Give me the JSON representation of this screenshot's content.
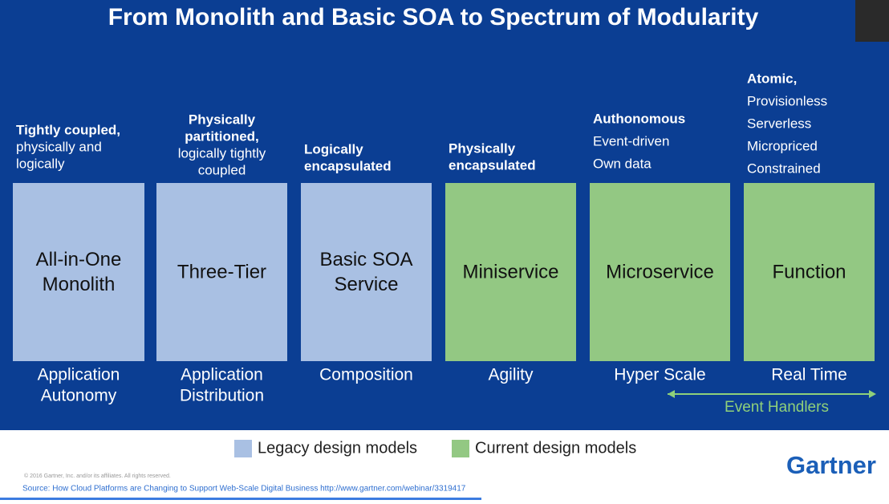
{
  "header": {
    "title": "From Monolith and Basic SOA to Spectrum of Modularity"
  },
  "columns": [
    {
      "heading": [
        "Tightly coupled,"
      ],
      "details": [
        "physically and",
        "logically"
      ],
      "box": [
        "All-in-One",
        "Monolith"
      ],
      "caption": [
        "Application",
        "Autonomy"
      ],
      "color": "#a9c0e3"
    },
    {
      "heading": [
        "Physically",
        "partitioned,"
      ],
      "details": [
        "logically tightly",
        "coupled"
      ],
      "box": [
        "Three-Tier"
      ],
      "caption": [
        "Application",
        "Distribution"
      ],
      "color": "#a9c0e3"
    },
    {
      "heading": [
        "Logically",
        "encapsulated"
      ],
      "details": [],
      "box": [
        "Basic SOA",
        "Service"
      ],
      "caption": [
        "Composition"
      ],
      "color": "#a9c0e3"
    },
    {
      "heading": [
        "Physically",
        "encapsulated"
      ],
      "details": [],
      "box": [
        "Miniservice"
      ],
      "caption": [
        "Agility"
      ],
      "color": "#93c883"
    },
    {
      "heading": [
        "Authonomous"
      ],
      "details": [
        "Event-driven",
        "Own data"
      ],
      "box": [
        "Microservice"
      ],
      "caption": [
        "Hyper Scale"
      ],
      "color": "#93c883"
    },
    {
      "heading": [
        "Atomic,"
      ],
      "details": [
        "Provisionless",
        "Serverless",
        "Micropriced",
        "Constrained"
      ],
      "box": [
        "Function"
      ],
      "caption": [
        "Real Time"
      ],
      "color": "#93c883"
    }
  ],
  "span": {
    "label": "Event Handlers",
    "color": "#8fd07a"
  },
  "legend": [
    {
      "label": "Legacy design models",
      "color": "#a9c0e3"
    },
    {
      "label": "Current design models",
      "color": "#93c883"
    }
  ],
  "footer": {
    "copyright": "© 2016 Gartner, Inc. and/or its affiliates. All rights reserved.",
    "source": "Source: How Cloud Platforms are Changing to Support Web-Scale Digital Business http://www.gartner.com/webinar/3319417",
    "brand": "Gartner"
  }
}
